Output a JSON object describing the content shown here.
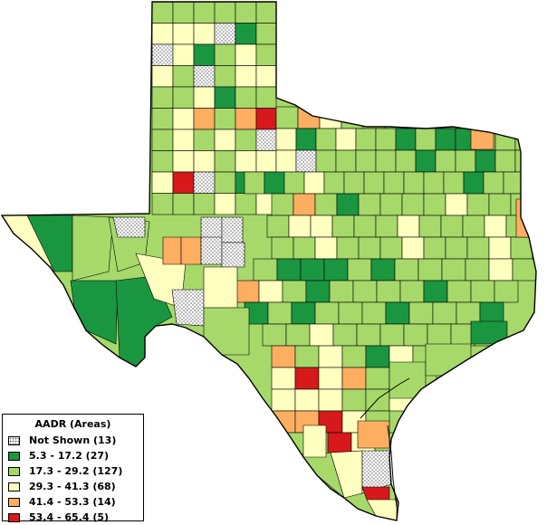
{
  "map": {
    "legend": {
      "title": "AADR (Areas)",
      "items": [
        {
          "key": "ns",
          "label": "Not Shown (13)",
          "color": "#ffffff",
          "pattern": "dotted"
        },
        {
          "key": "c1",
          "label": "5.3 - 17.2 (27)",
          "color": "#1a9641"
        },
        {
          "key": "c2",
          "label": "17.3 - 29.2 (127)",
          "color": "#a6d96a"
        },
        {
          "key": "c3",
          "label": "29.3 - 41.3 (68)",
          "color": "#ffffbf"
        },
        {
          "key": "c4",
          "label": "41.4 - 53.3 (14)",
          "color": "#fdae61"
        },
        {
          "key": "c5",
          "label": "53.4 - 65.4 (5)",
          "color": "#d7191c"
        }
      ]
    }
  }
}
